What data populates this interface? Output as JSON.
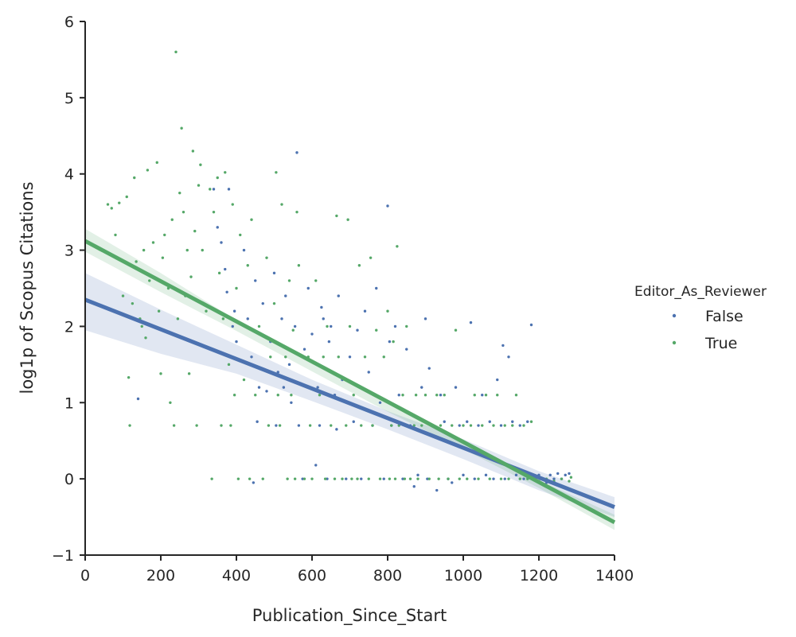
{
  "chart_data": {
    "type": "scatter",
    "title": "",
    "xlabel": "Publication_Since_Start",
    "ylabel": "log1p of Scopus Citations",
    "xlim": [
      0,
      1400
    ],
    "ylim": [
      -1,
      6
    ],
    "xticks": [
      0,
      200,
      400,
      600,
      800,
      1000,
      1200,
      1400
    ],
    "yticks": [
      -1,
      0,
      1,
      2,
      3,
      4,
      5,
      6
    ],
    "xtick_labels": [
      "0",
      "200",
      "400",
      "600",
      "800",
      "1000",
      "1200",
      "1400"
    ],
    "ytick_labels": [
      "−1",
      "0",
      "1",
      "2",
      "3",
      "4",
      "5",
      "6"
    ],
    "grid": false,
    "legend": {
      "title": "Editor_As_Reviewer",
      "position": "right",
      "entries": [
        "False",
        "True"
      ]
    },
    "series": [
      {
        "name": "False",
        "color": "#4c72b0",
        "fit": {
          "x": [
            0,
            1400
          ],
          "y": [
            2.35,
            -0.37
          ]
        },
        "ci_band": {
          "x": [
            0,
            200,
            400,
            600,
            800,
            1000,
            1200,
            1400
          ],
          "lower": [
            1.95,
            1.64,
            1.38,
            1.02,
            0.65,
            0.26,
            -0.15,
            -0.5
          ],
          "upper": [
            2.7,
            2.22,
            1.76,
            1.3,
            0.89,
            0.52,
            0.1,
            -0.24
          ]
        },
        "points": [
          [
            140,
            1.05
          ],
          [
            340,
            3.8
          ],
          [
            350,
            3.3
          ],
          [
            360,
            3.1
          ],
          [
            370,
            2.75
          ],
          [
            375,
            2.45
          ],
          [
            380,
            3.8
          ],
          [
            390,
            2.0
          ],
          [
            395,
            2.2
          ],
          [
            400,
            1.8
          ],
          [
            420,
            3.0
          ],
          [
            430,
            2.1
          ],
          [
            440,
            1.6
          ],
          [
            445,
            -0.05
          ],
          [
            450,
            2.6
          ],
          [
            455,
            0.75
          ],
          [
            460,
            1.2
          ],
          [
            470,
            2.3
          ],
          [
            480,
            1.15
          ],
          [
            490,
            1.8
          ],
          [
            500,
            2.7
          ],
          [
            505,
            0.7
          ],
          [
            510,
            1.4
          ],
          [
            520,
            2.1
          ],
          [
            525,
            1.2
          ],
          [
            530,
            2.4
          ],
          [
            540,
            1.5
          ],
          [
            545,
            1.0
          ],
          [
            555,
            2.0
          ],
          [
            560,
            4.28
          ],
          [
            565,
            0.7
          ],
          [
            575,
            0.0
          ],
          [
            580,
            1.7
          ],
          [
            590,
            2.5
          ],
          [
            600,
            1.9
          ],
          [
            610,
            0.18
          ],
          [
            615,
            1.2
          ],
          [
            620,
            0.7
          ],
          [
            625,
            2.25
          ],
          [
            630,
            2.1
          ],
          [
            640,
            0.0
          ],
          [
            645,
            1.8
          ],
          [
            650,
            2.0
          ],
          [
            660,
            1.1
          ],
          [
            665,
            0.65
          ],
          [
            670,
            2.4
          ],
          [
            680,
            1.3
          ],
          [
            690,
            0.0
          ],
          [
            700,
            1.6
          ],
          [
            710,
            0.75
          ],
          [
            720,
            1.95
          ],
          [
            730,
            0.0
          ],
          [
            740,
            2.2
          ],
          [
            750,
            1.4
          ],
          [
            760,
            0.7
          ],
          [
            770,
            2.5
          ],
          [
            780,
            1.0
          ],
          [
            790,
            0.0
          ],
          [
            800,
            3.58
          ],
          [
            805,
            1.8
          ],
          [
            810,
            0.7
          ],
          [
            820,
            2.0
          ],
          [
            830,
            1.1
          ],
          [
            840,
            0.0
          ],
          [
            850,
            1.7
          ],
          [
            860,
            0.7
          ],
          [
            870,
            -0.1
          ],
          [
            880,
            0.05
          ],
          [
            890,
            1.2
          ],
          [
            900,
            2.1
          ],
          [
            905,
            0.0
          ],
          [
            910,
            1.45
          ],
          [
            920,
            0.7
          ],
          [
            930,
            -0.15
          ],
          [
            940,
            1.1
          ],
          [
            950,
            0.75
          ],
          [
            960,
            0.0
          ],
          [
            970,
            -0.05
          ],
          [
            980,
            1.2
          ],
          [
            990,
            0.7
          ],
          [
            1000,
            0.05
          ],
          [
            1010,
            0.75
          ],
          [
            1020,
            2.05
          ],
          [
            1030,
            0.0
          ],
          [
            1040,
            0.7
          ],
          [
            1050,
            1.1
          ],
          [
            1060,
            0.05
          ],
          [
            1070,
            0.75
          ],
          [
            1080,
            0.0
          ],
          [
            1090,
            1.3
          ],
          [
            1100,
            0.7
          ],
          [
            1105,
            1.75
          ],
          [
            1110,
            0.0
          ],
          [
            1120,
            1.6
          ],
          [
            1130,
            0.75
          ],
          [
            1140,
            0.05
          ],
          [
            1150,
            0.7
          ],
          [
            1160,
            0.0
          ],
          [
            1170,
            0.75
          ],
          [
            1180,
            2.02
          ],
          [
            1190,
            0.0
          ],
          [
            1200,
            0.05
          ],
          [
            1210,
            0.0
          ],
          [
            1220,
            -0.05
          ],
          [
            1230,
            0.05
          ],
          [
            1240,
            0.0
          ],
          [
            1250,
            0.07
          ],
          [
            1260,
            0.0
          ],
          [
            1270,
            0.05
          ],
          [
            1280,
            0.07
          ]
        ]
      },
      {
        "name": "True",
        "color": "#55a868",
        "fit": {
          "x": [
            0,
            1400
          ],
          "y": [
            3.12,
            -0.57
          ]
        },
        "ci_band": {
          "x": [
            0,
            200,
            400,
            600,
            800,
            1000,
            1200,
            1400
          ],
          "lower": [
            2.98,
            2.45,
            1.94,
            1.41,
            0.88,
            0.39,
            -0.12,
            -0.67
          ],
          "upper": [
            3.28,
            2.7,
            2.08,
            1.53,
            0.98,
            0.47,
            -0.02,
            -0.47
          ]
        },
        "points": [
          [
            60,
            3.6
          ],
          [
            70,
            3.55
          ],
          [
            80,
            3.2
          ],
          [
            90,
            3.62
          ],
          [
            100,
            2.4
          ],
          [
            110,
            3.7
          ],
          [
            115,
            1.33
          ],
          [
            118,
            0.7
          ],
          [
            125,
            2.3
          ],
          [
            130,
            3.95
          ],
          [
            135,
            2.85
          ],
          [
            145,
            2.1
          ],
          [
            150,
            2.0
          ],
          [
            155,
            3.0
          ],
          [
            160,
            1.85
          ],
          [
            165,
            4.05
          ],
          [
            170,
            2.6
          ],
          [
            180,
            3.1
          ],
          [
            190,
            4.15
          ],
          [
            195,
            2.2
          ],
          [
            200,
            1.38
          ],
          [
            205,
            2.9
          ],
          [
            210,
            3.2
          ],
          [
            220,
            2.5
          ],
          [
            225,
            1.0
          ],
          [
            230,
            3.4
          ],
          [
            235,
            0.7
          ],
          [
            240,
            5.6
          ],
          [
            245,
            2.1
          ],
          [
            250,
            3.75
          ],
          [
            255,
            4.6
          ],
          [
            260,
            3.5
          ],
          [
            265,
            2.4
          ],
          [
            270,
            3.0
          ],
          [
            275,
            1.38
          ],
          [
            280,
            2.65
          ],
          [
            285,
            4.3
          ],
          [
            290,
            3.25
          ],
          [
            295,
            0.7
          ],
          [
            300,
            3.85
          ],
          [
            305,
            4.12
          ],
          [
            310,
            3.0
          ],
          [
            320,
            2.2
          ],
          [
            330,
            3.8
          ],
          [
            335,
            0.0
          ],
          [
            340,
            3.5
          ],
          [
            350,
            3.95
          ],
          [
            355,
            2.7
          ],
          [
            360,
            0.7
          ],
          [
            365,
            2.1
          ],
          [
            370,
            4.02
          ],
          [
            380,
            1.5
          ],
          [
            385,
            0.7
          ],
          [
            390,
            3.6
          ],
          [
            395,
            1.1
          ],
          [
            400,
            2.5
          ],
          [
            405,
            0.0
          ],
          [
            410,
            3.2
          ],
          [
            420,
            1.3
          ],
          [
            430,
            2.8
          ],
          [
            435,
            0.0
          ],
          [
            440,
            3.4
          ],
          [
            450,
            1.1
          ],
          [
            460,
            2.0
          ],
          [
            470,
            0.0
          ],
          [
            480,
            2.9
          ],
          [
            485,
            0.7
          ],
          [
            490,
            1.6
          ],
          [
            500,
            2.3
          ],
          [
            505,
            4.02
          ],
          [
            510,
            1.1
          ],
          [
            515,
            0.7
          ],
          [
            520,
            3.6
          ],
          [
            530,
            1.6
          ],
          [
            535,
            0.0
          ],
          [
            540,
            2.6
          ],
          [
            545,
            1.1
          ],
          [
            550,
            1.95
          ],
          [
            555,
            0.0
          ],
          [
            560,
            3.5
          ],
          [
            565,
            2.8
          ],
          [
            570,
            1.25
          ],
          [
            580,
            0.0
          ],
          [
            590,
            1.6
          ],
          [
            595,
            0.7
          ],
          [
            600,
            0.0
          ],
          [
            610,
            2.6
          ],
          [
            620,
            1.1
          ],
          [
            630,
            1.6
          ],
          [
            635,
            0.0
          ],
          [
            640,
            2.0
          ],
          [
            650,
            0.7
          ],
          [
            660,
            0.0
          ],
          [
            665,
            3.45
          ],
          [
            670,
            1.6
          ],
          [
            680,
            0.0
          ],
          [
            690,
            0.7
          ],
          [
            695,
            3.4
          ],
          [
            700,
            2.0
          ],
          [
            705,
            0.0
          ],
          [
            710,
            1.1
          ],
          [
            720,
            0.0
          ],
          [
            725,
            2.8
          ],
          [
            730,
            0.7
          ],
          [
            740,
            1.6
          ],
          [
            750,
            0.0
          ],
          [
            755,
            2.9
          ],
          [
            760,
            0.7
          ],
          [
            770,
            1.95
          ],
          [
            780,
            0.0
          ],
          [
            790,
            1.6
          ],
          [
            800,
            2.2
          ],
          [
            805,
            0.0
          ],
          [
            810,
            0.7
          ],
          [
            815,
            1.8
          ],
          [
            820,
            0.0
          ],
          [
            825,
            3.05
          ],
          [
            830,
            0.7
          ],
          [
            840,
            1.1
          ],
          [
            845,
            0.0
          ],
          [
            850,
            2.0
          ],
          [
            860,
            0.0
          ],
          [
            870,
            0.7
          ],
          [
            875,
            1.1
          ],
          [
            880,
            0.0
          ],
          [
            890,
            0.7
          ],
          [
            900,
            1.1
          ],
          [
            910,
            0.0
          ],
          [
            920,
            0.7
          ],
          [
            930,
            1.1
          ],
          [
            935,
            0.0
          ],
          [
            940,
            0.7
          ],
          [
            950,
            1.1
          ],
          [
            960,
            0.0
          ],
          [
            970,
            0.7
          ],
          [
            980,
            1.95
          ],
          [
            990,
            0.0
          ],
          [
            1000,
            0.7
          ],
          [
            1010,
            0.0
          ],
          [
            1020,
            0.7
          ],
          [
            1030,
            1.1
          ],
          [
            1040,
            0.0
          ],
          [
            1050,
            0.7
          ],
          [
            1060,
            1.1
          ],
          [
            1070,
            0.0
          ],
          [
            1080,
            0.7
          ],
          [
            1090,
            1.1
          ],
          [
            1100,
            0.0
          ],
          [
            1110,
            0.7
          ],
          [
            1120,
            0.0
          ],
          [
            1130,
            0.7
          ],
          [
            1140,
            1.1
          ],
          [
            1150,
            0.0
          ],
          [
            1160,
            0.7
          ],
          [
            1170,
            0.0
          ],
          [
            1180,
            0.75
          ],
          [
            1190,
            0.0
          ],
          [
            1200,
            -0.03
          ],
          [
            1220,
            0.0
          ],
          [
            1240,
            -0.03
          ],
          [
            1260,
            0.0
          ],
          [
            1280,
            -0.03
          ],
          [
            1285,
            0.02
          ]
        ]
      }
    ]
  }
}
